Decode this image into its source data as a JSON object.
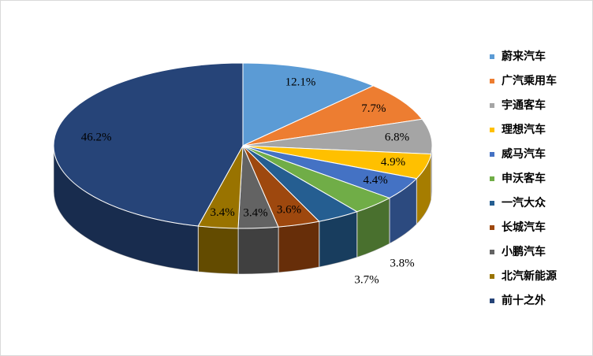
{
  "chart_data": {
    "type": "pie",
    "categories": [
      "蔚来汽车",
      "广汽乘用车",
      "宇通客车",
      "理想汽车",
      "威马汽车",
      "申沃客车",
      "一汽大众",
      "长城汽车",
      "小鹏汽车",
      "北汽新能源",
      "前十之外"
    ],
    "values": [
      12.1,
      7.7,
      6.8,
      4.9,
      4.4,
      3.8,
      3.7,
      3.6,
      3.4,
      3.4,
      46.2
    ],
    "value_labels": [
      "12.1%",
      "7.7%",
      "6.8%",
      "4.9%",
      "4.4%",
      "3.8%",
      "3.7%",
      "3.6%",
      "3.4%",
      "3.4%",
      "46.2%"
    ],
    "colors": [
      "#5b9bd5",
      "#ed7d31",
      "#a5a5a5",
      "#ffc000",
      "#4472c4",
      "#70ad47",
      "#255e91",
      "#9e480e",
      "#636363",
      "#997300",
      "#264478"
    ],
    "legend": "right"
  }
}
